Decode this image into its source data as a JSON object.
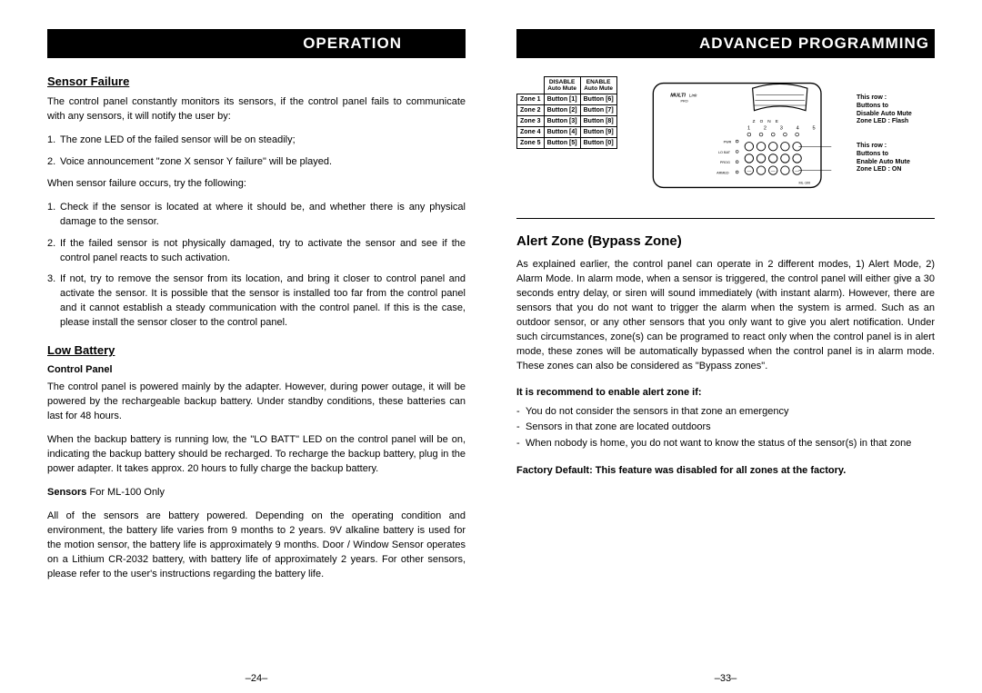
{
  "left": {
    "header": "OPERATION",
    "sensor_failure": {
      "title": "Sensor Failure",
      "intro": "The control panel constantly monitors its sensors, if the control panel fails to communicate with any sensors, it will notify the user by:",
      "notify1_num": "1.",
      "notify1": "The zone LED of the failed sensor will be on steadily;",
      "notify2_num": "2.",
      "notify2": "Voice announcement \"zone X sensor Y failure\" will be played.",
      "try_intro": "When sensor failure occurs, try the following:",
      "step1_num": "1.",
      "step1": "Check if the sensor is located at where it should be, and whether there is any physical damage to the sensor.",
      "step2_num": "2.",
      "step2": "If the failed sensor is not physically damaged, try to activate the sensor and see if the control panel reacts to such activation.",
      "step3_num": "3.",
      "step3": "If not, try to remove the sensor from its location, and bring it closer to control panel and activate the sensor.  It is possible that the sensor is installed too far from the control panel and it cannot establish a steady communication with the control panel.  If this is the case, please install the sensor closer to the control panel."
    },
    "low_battery": {
      "title": "Low Battery",
      "cp_title": "Control Panel",
      "cp_p1": "The control panel is powered mainly by the adapter.  However, during power outage, it will be powered by the rechargeable backup battery.  Under standby conditions, these batteries can last for 48 hours.",
      "cp_p2": "When the backup battery is running low, the \"LO BATT\" LED on the control panel will be on, indicating the backup battery should be recharged. To recharge the backup battery, plug in the power adapter. It takes approx. 20 hours to fully charge the backup battery.",
      "sensors_label": "Sensors",
      "sensors_suffix": " For ML-100 Only",
      "sensors_p": "All of the sensors are battery powered.  Depending on the operating condition and environment, the battery life varies from 9 months to 2 years.  9V alkaline battery is used for the motion sensor, the battery life is approximately 9 months. Door / Window Sensor operates on a Lithium CR-2032 battery, with battery life of approximately 2 years.  For other sensors, please refer to the user's instructions regarding the battery life."
    },
    "page_num": "–24–"
  },
  "right": {
    "header": "ADVANCED PROGRAMMING",
    "table": {
      "col1_l1": "DISABLE",
      "col1_l2": "Auto Mute",
      "col2_l1": "ENABLE",
      "col2_l2": "Auto Mute",
      "rows": [
        {
          "zone": "Zone 1",
          "b1": "Button [1]",
          "b2": "Button [6]"
        },
        {
          "zone": "Zone 2",
          "b1": "Button [2]",
          "b2": "Button [7]"
        },
        {
          "zone": "Zone 3",
          "b1": "Button [3]",
          "b2": "Button [8]"
        },
        {
          "zone": "Zone 4",
          "b1": "Button [4]",
          "b2": "Button [9]"
        },
        {
          "zone": "Zone 5",
          "b1": "Button [5]",
          "b2": "Button [0]"
        }
      ]
    },
    "notes": {
      "n1_l1": "This row     :",
      "n1_l2": "Buttons  to",
      "n1_l3": "Disable Auto Mute",
      "n1_l4": "Zone LED : Flash",
      "n2_l1": "This row     :",
      "n2_l2": "Buttons  to",
      "n2_l3": "Enable Auto Mute",
      "n2_l4": "Zone LED : ON"
    },
    "alert": {
      "title": "Alert Zone (Bypass Zone)",
      "p1": "As explained earlier, the control panel can operate in 2 different modes, 1) Alert Mode, 2) Alarm Mode.  In alarm mode, when a sensor is triggered, the control panel will either give a 30 seconds entry delay, or siren will sound immediately (with instant alarm).  However, there are sensors that you do not want to trigger the alarm when the system is armed.  Such as an outdoor sensor, or any other sensors that you only want to give you alert notification.   Under such circumstances, zone(s) can be programed to react only when the control panel is in alert mode,  these zones will be automatically bypassed when the control panel is in alarm mode. These zones can also be considered as \"Bypass zones\".",
      "rec_title": "It is recommend to enable alert zone if:",
      "li1": "You do not consider the sensors in that zone an emergency",
      "li2": "Sensors in that zone are located outdoors",
      "li3": "When nobody is home, you do not want to know the status of the sensor(s) in that zone",
      "factory": "Factory Default: This feature was disabled for all zones at the factory."
    },
    "page_num": "–33–"
  },
  "panel": {
    "brand": "MULTI Link",
    "brand_sub": "PRO",
    "zone_labels": "Z  O  N  E",
    "nums": "1  2  3  4  5",
    "leds": "○ ○ ○ ○ ○",
    "row_labels": [
      "PWR○",
      "LO BAT○",
      "PROG○",
      "ARMED○"
    ],
    "keypad_rows": 3,
    "keypad_cols": 5
  }
}
